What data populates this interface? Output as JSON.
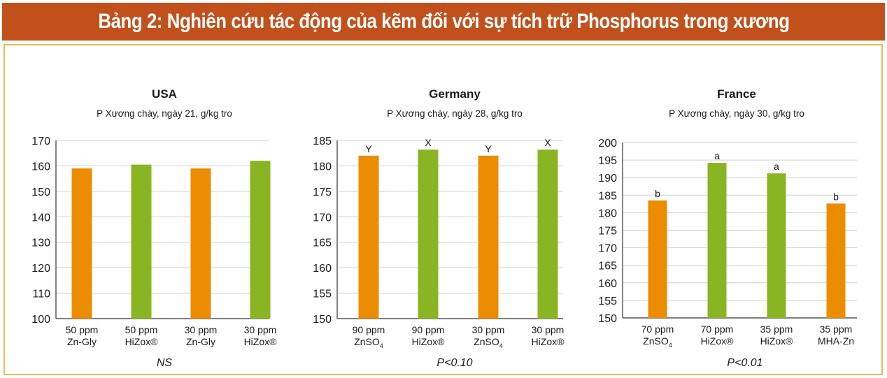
{
  "banner": {
    "title": "Bảng 2: Nghiên cứu tác động của kẽm đối với sự tích trữ Phosphorus trong xương"
  },
  "colors": {
    "banner": "#c2501b",
    "frame": "#f0b85a",
    "orange": "#ec8c00",
    "green": "#8ab523"
  },
  "chart_data": [
    {
      "type": "bar",
      "title": "USA",
      "subtitle": "P Xương chày, ngày 21, g/kg tro",
      "ylim": [
        100,
        170
      ],
      "yticks": [
        100,
        110,
        120,
        130,
        140,
        150,
        160,
        170
      ],
      "categories": [
        [
          "50 ppm",
          "Zn-Gly"
        ],
        [
          "50 ppm",
          "HiZox®"
        ],
        [
          "30 ppm",
          "Zn-Gly"
        ],
        [
          "30 ppm",
          "HiZox®"
        ]
      ],
      "values": [
        159,
        160.5,
        159,
        162
      ],
      "bar_colors": [
        "orange",
        "green",
        "orange",
        "green"
      ],
      "letters": [
        "",
        "",
        "",
        ""
      ],
      "footnote": "NS",
      "grid": true
    },
    {
      "type": "bar",
      "title": "Germany",
      "subtitle": "P Xương chày, ngày 28, g/kg tro",
      "ylim": [
        150,
        185
      ],
      "yticks": [
        150,
        155,
        160,
        165,
        170,
        175,
        180,
        185
      ],
      "categories": [
        [
          "90 ppm",
          "ZnSO",
          "4"
        ],
        [
          "90 ppm",
          "HiZox®"
        ],
        [
          "30 ppm",
          "ZnSO",
          "4"
        ],
        [
          "30 ppm",
          "HiZox®"
        ]
      ],
      "values": [
        182,
        183.2,
        182,
        183.2
      ],
      "bar_colors": [
        "orange",
        "green",
        "orange",
        "green"
      ],
      "letters": [
        "Y",
        "X",
        "Y",
        "X"
      ],
      "footnote": "P<0.10",
      "grid": true
    },
    {
      "type": "bar",
      "title": "France",
      "subtitle": "P Xương chày, ngày 30, g/kg tro",
      "ylim": [
        150,
        200
      ],
      "yticks": [
        150,
        155,
        160,
        165,
        170,
        175,
        180,
        185,
        190,
        195,
        200
      ],
      "categories": [
        [
          "70 ppm",
          "ZnSO",
          "4"
        ],
        [
          "70 ppm",
          "HiZox®"
        ],
        [
          "35 ppm",
          "HiZox®"
        ],
        [
          "35 ppm",
          "MHA-Zn"
        ]
      ],
      "values": [
        183.5,
        194.2,
        191.2,
        182.6
      ],
      "bar_colors": [
        "orange",
        "green",
        "green",
        "orange"
      ],
      "letters": [
        "b",
        "a",
        "a",
        "b"
      ],
      "footnote": "P<0.01",
      "grid": true
    }
  ]
}
